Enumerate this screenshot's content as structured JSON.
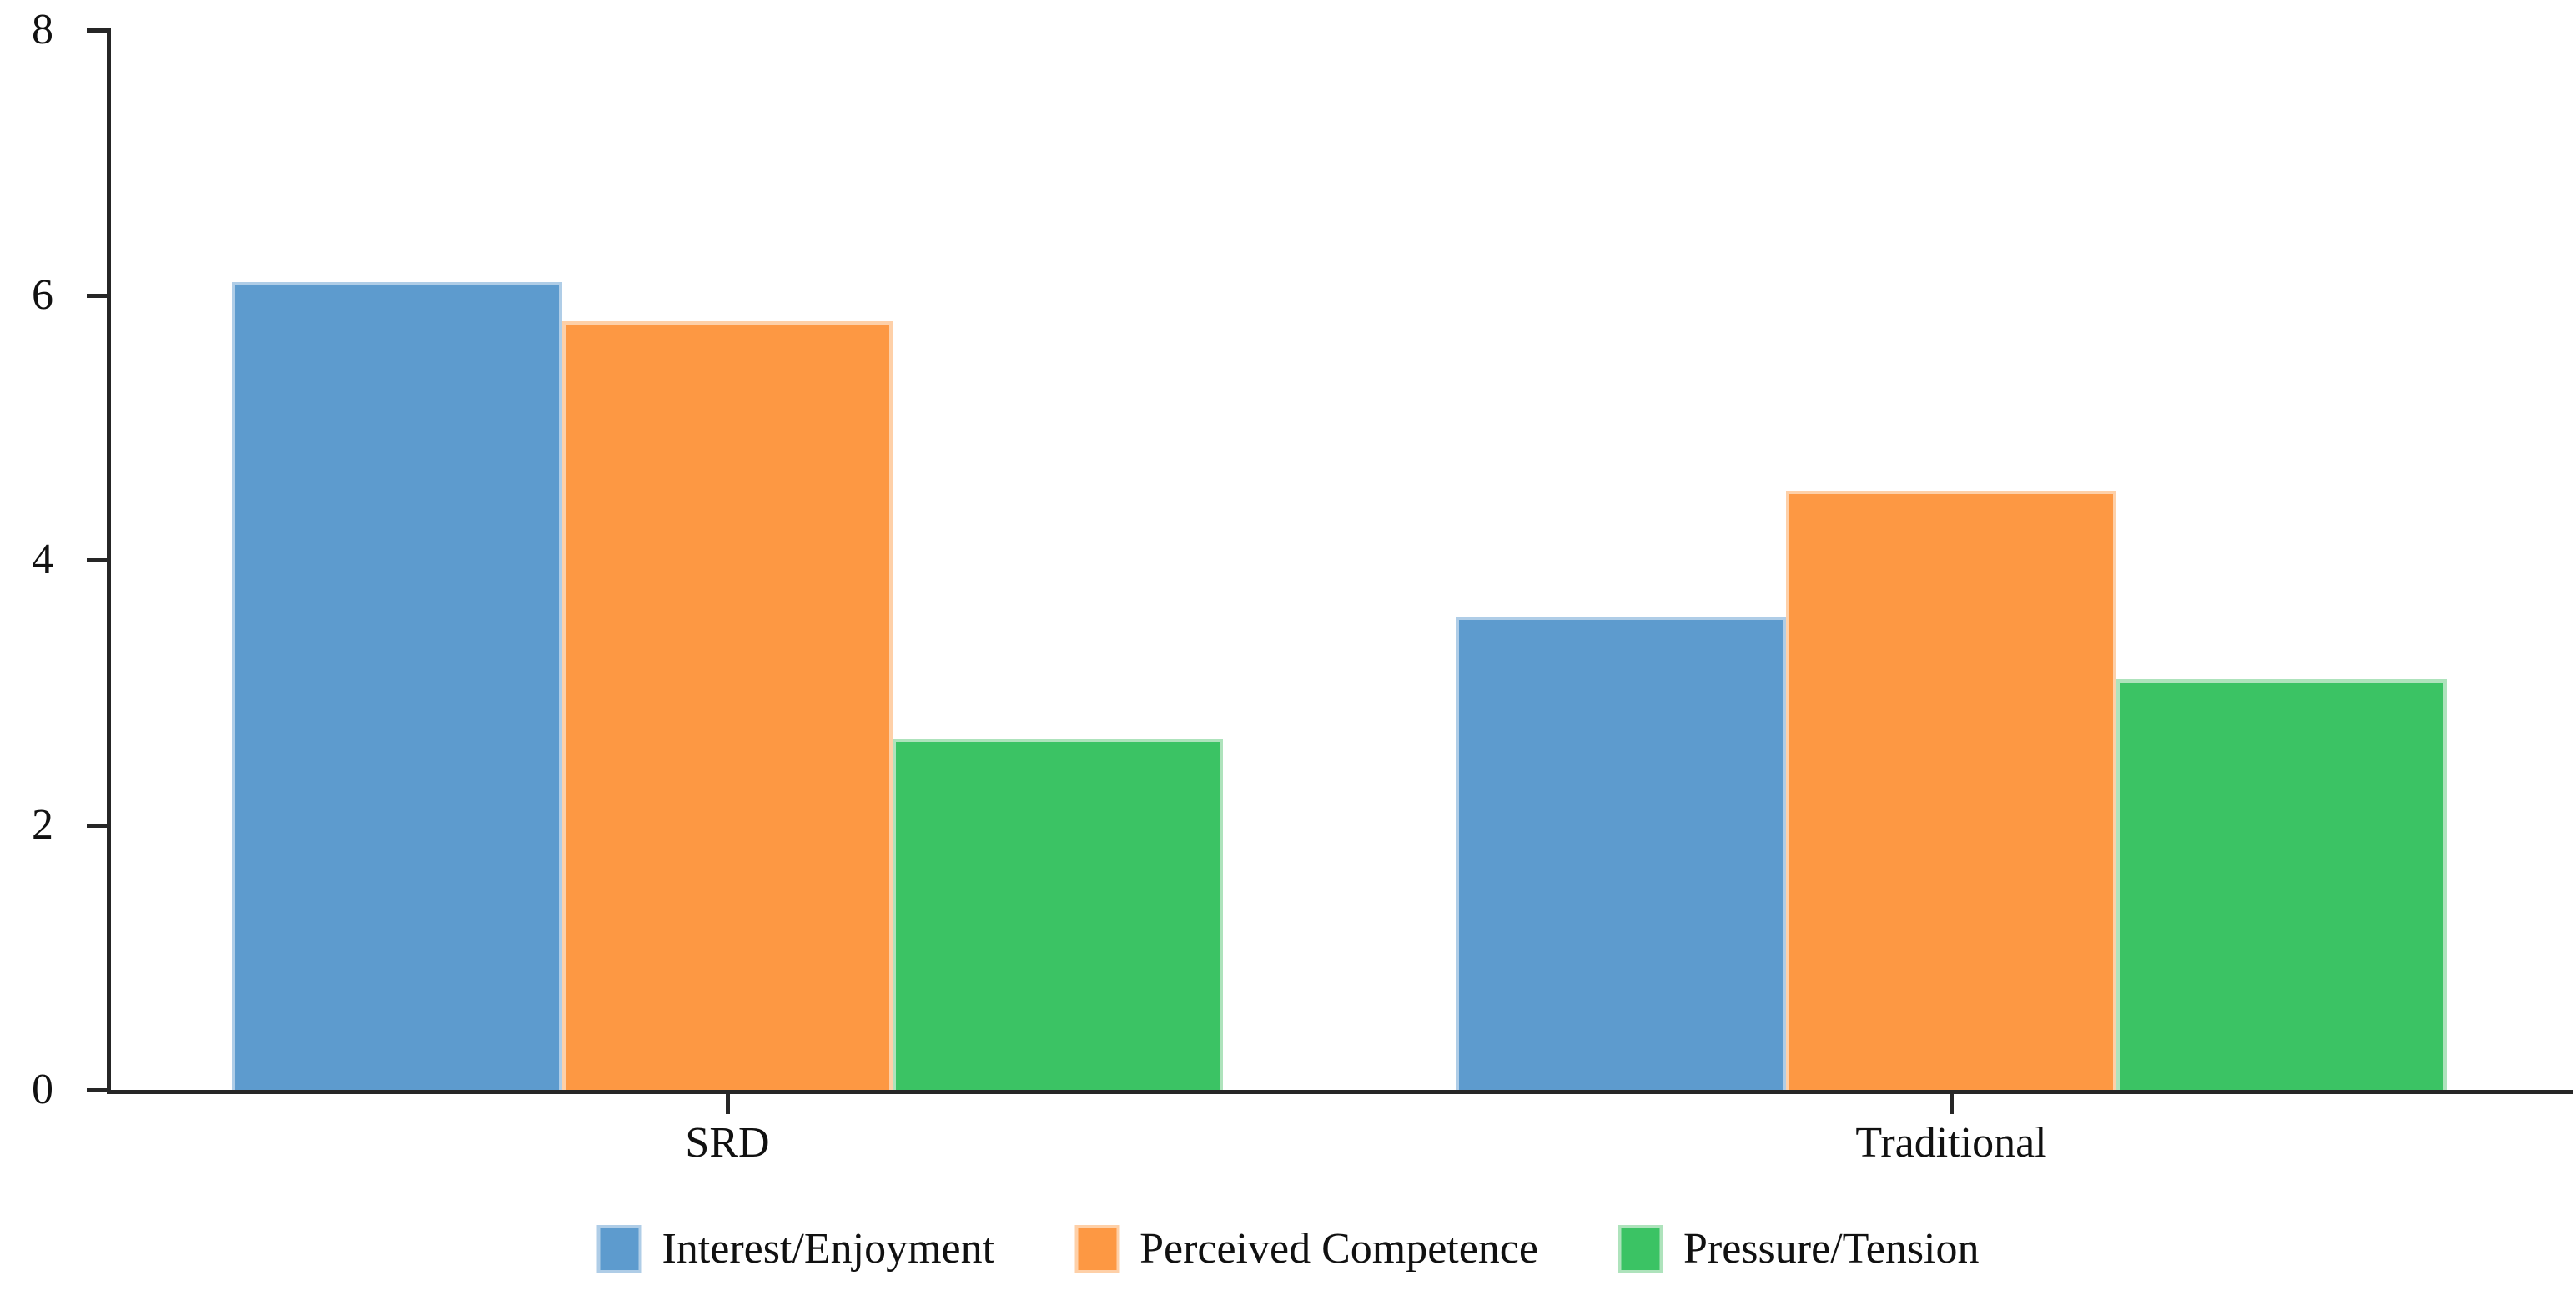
{
  "chart_data": {
    "type": "bar",
    "title": "",
    "xlabel": "",
    "ylabel": "",
    "categories": [
      "SRD",
      "Traditional"
    ],
    "series": [
      {
        "name": "Interest/Enjoyment",
        "color": "#5D9BCE",
        "edge_color": "#AFCDE7",
        "values": [
          6.1,
          3.57
        ]
      },
      {
        "name": "Perceived Competence",
        "color": "#FD9843",
        "edge_color": "#FED0A8",
        "values": [
          5.8,
          4.52
        ]
      },
      {
        "name": "Pressure/Tension",
        "color": "#3BC364",
        "edge_color": "#AEE3BC",
        "values": [
          2.65,
          3.1
        ]
      }
    ],
    "ylim": [
      0,
      8
    ],
    "yticks": [
      0,
      2,
      4,
      6,
      8
    ],
    "grid": false,
    "legend_position": "bottom",
    "axis_color": "#262626",
    "text_color": "#111111",
    "background_color": "#ffffff"
  }
}
